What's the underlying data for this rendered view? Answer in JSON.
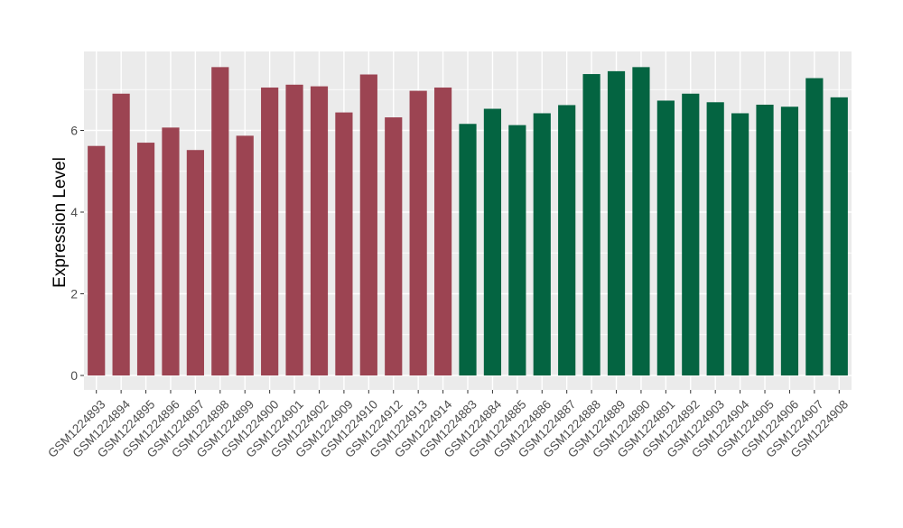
{
  "chart_data": {
    "type": "bar",
    "title": "",
    "xlabel": "",
    "ylabel": "Expression Level",
    "ylim": [
      0,
      7.8
    ],
    "yticks": [
      0,
      2,
      4,
      6
    ],
    "grid": true,
    "panel_background": "#ebebeb",
    "grid_color": "#ffffff",
    "categories": [
      "GSM1224893",
      "GSM1224894",
      "GSM1224895",
      "GSM1224896",
      "GSM1224897",
      "GSM1224898",
      "GSM1224899",
      "GSM1224900",
      "GSM1224901",
      "GSM1224902",
      "GSM1224909",
      "GSM1224910",
      "GSM1224912",
      "GSM1224913",
      "GSM1224914",
      "GSM1224883",
      "GSM1224884",
      "GSM1224885",
      "GSM1224886",
      "GSM1224887",
      "GSM1224888",
      "GSM1224889",
      "GSM1224890",
      "GSM1224891",
      "GSM1224892",
      "GSM1224903",
      "GSM1224904",
      "GSM1224905",
      "GSM1224906",
      "GSM1224907",
      "GSM1224908"
    ],
    "values": [
      5.62,
      6.9,
      5.7,
      6.07,
      5.52,
      7.55,
      5.87,
      7.05,
      7.12,
      7.08,
      6.44,
      7.37,
      6.32,
      6.97,
      7.05,
      6.16,
      6.53,
      6.13,
      6.42,
      6.62,
      7.38,
      7.45,
      7.55,
      6.73,
      6.9,
      6.69,
      6.42,
      6.63,
      6.58,
      7.28,
      6.81
    ],
    "groups": [
      0,
      0,
      0,
      0,
      0,
      0,
      0,
      0,
      0,
      0,
      0,
      0,
      0,
      0,
      0,
      1,
      1,
      1,
      1,
      1,
      1,
      1,
      1,
      1,
      1,
      1,
      1,
      1,
      1,
      1,
      1
    ],
    "group_colors": [
      "#9c4452",
      "#046441"
    ]
  }
}
